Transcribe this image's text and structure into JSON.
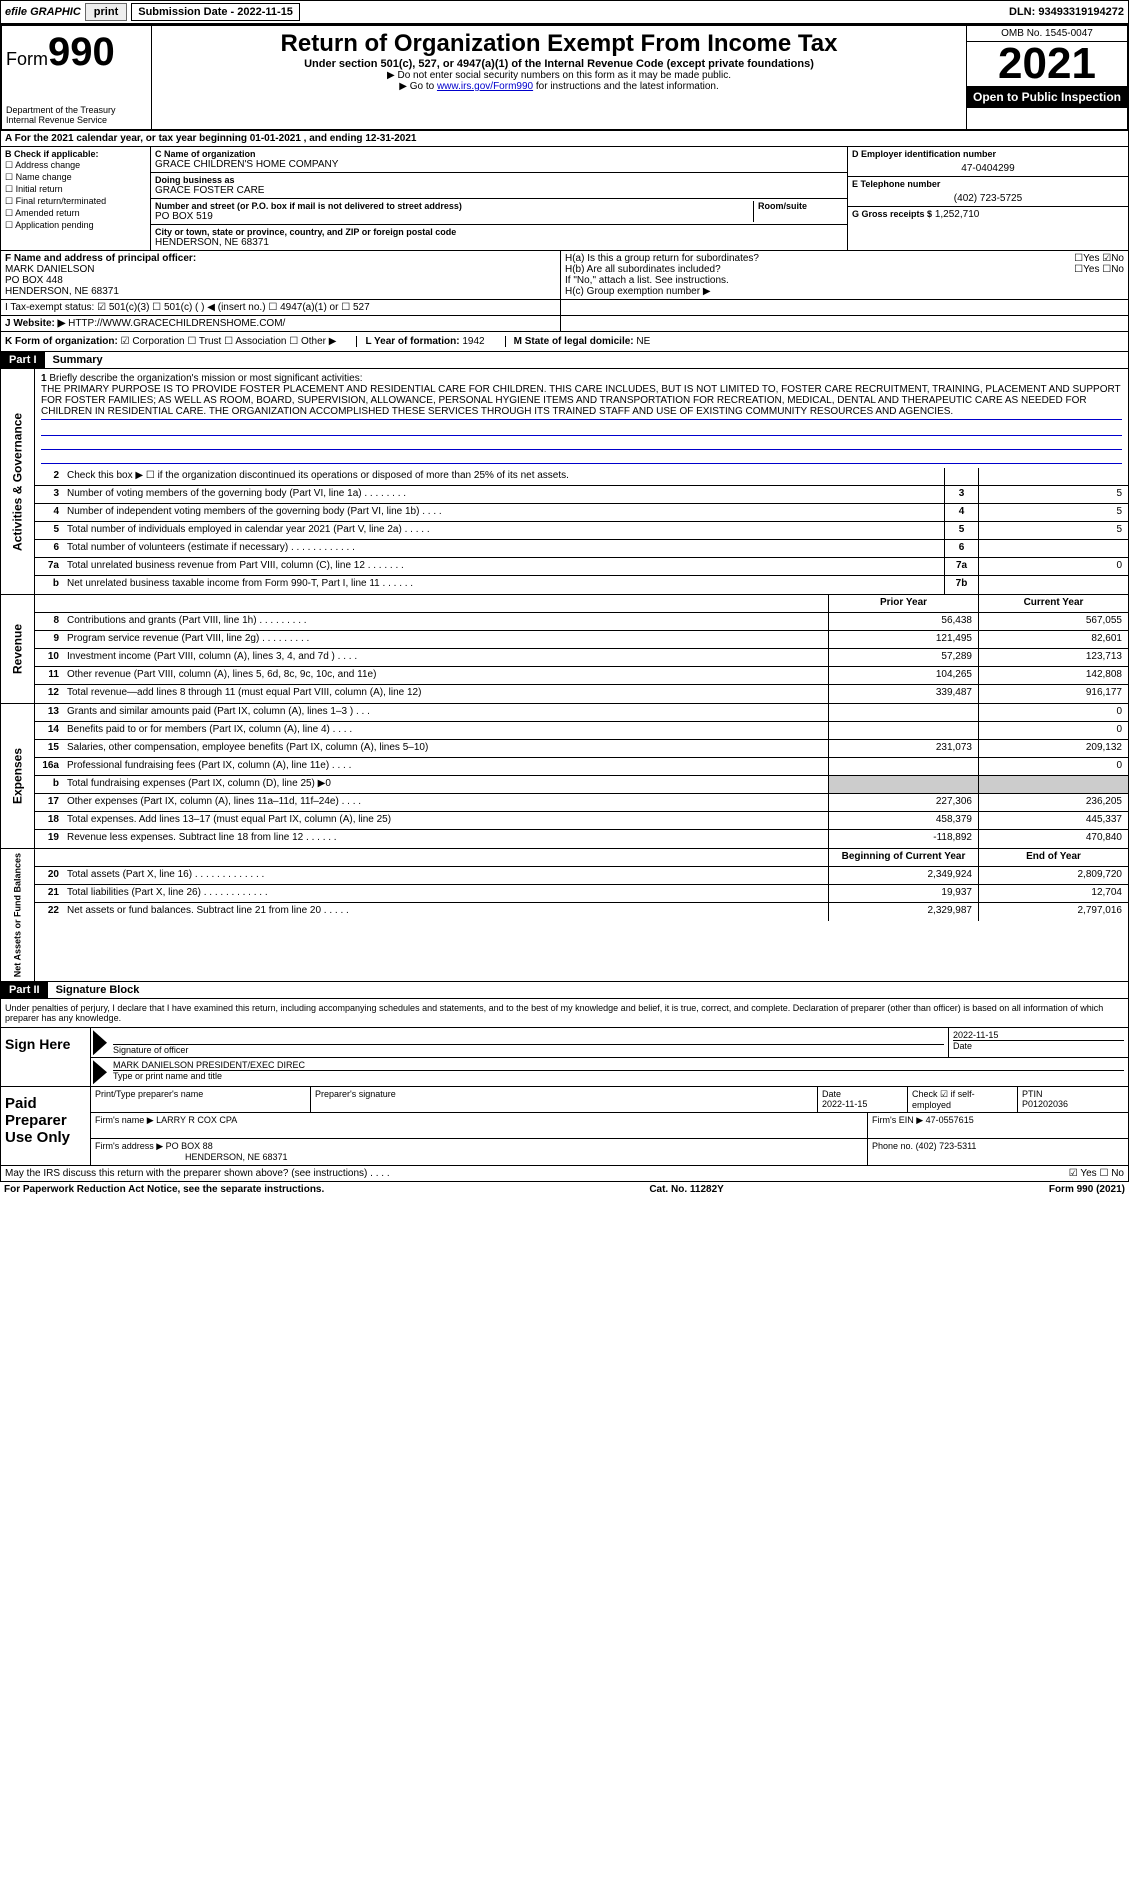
{
  "topbar": {
    "efile": "efile GRAPHIC",
    "print": "print",
    "subdate_lbl": "Submission Date - 2022-11-15",
    "dln": "DLN: 93493319194272"
  },
  "header": {
    "form_prefix": "Form",
    "form_num": "990",
    "dept": "Department of the Treasury",
    "irs": "Internal Revenue Service",
    "title": "Return of Organization Exempt From Income Tax",
    "sub1": "Under section 501(c), 527, or 4947(a)(1) of the Internal Revenue Code (except private foundations)",
    "sub2": "▶ Do not enter social security numbers on this form as it may be made public.",
    "sub3_pre": "▶ Go to ",
    "sub3_link": "www.irs.gov/Form990",
    "sub3_post": " for instructions and the latest information.",
    "omb": "OMB No. 1545-0047",
    "year": "2021",
    "inspection": "Open to Public Inspection"
  },
  "tax_year_line": "A For the 2021 calendar year, or tax year beginning 01-01-2021   , and ending 12-31-2021",
  "colB": {
    "hdr": "B Check if applicable:",
    "items": [
      "Address change",
      "Name change",
      "Initial return",
      "Final return/terminated",
      "Amended return",
      "Application pending"
    ]
  },
  "colC": {
    "name_lbl": "C Name of organization",
    "name": "GRACE CHILDREN'S HOME COMPANY",
    "dba_lbl": "Doing business as",
    "dba": "GRACE FOSTER CARE",
    "addr_lbl": "Number and street (or P.O. box if mail is not delivered to street address)",
    "room_lbl": "Room/suite",
    "addr": "PO BOX 519",
    "city_lbl": "City or town, state or province, country, and ZIP or foreign postal code",
    "city": "HENDERSON, NE  68371"
  },
  "colD": {
    "ein_lbl": "D Employer identification number",
    "ein": "47-0404299",
    "phone_lbl": "E Telephone number",
    "phone": "(402) 723-5725",
    "gross_lbl": "G Gross receipts $",
    "gross": "1,252,710"
  },
  "F": {
    "lbl": "F  Name and address of principal officer:",
    "name": "MARK DANIELSON",
    "addr1": "PO BOX 448",
    "addr2": "HENDERSON, NE  68371"
  },
  "H": {
    "a": "H(a)  Is this a group return for subordinates?",
    "b": "H(b)  Are all subordinates included?",
    "b_note": "If \"No,\" attach a list. See instructions.",
    "c": "H(c)  Group exemption number ▶",
    "yes": "Yes",
    "no": "No"
  },
  "I": {
    "lbl": "I   Tax-exempt status:",
    "opts": [
      "501(c)(3)",
      "501(c) (   ) ◀ (insert no.)",
      "4947(a)(1) or",
      "527"
    ]
  },
  "J": {
    "lbl": "J   Website: ▶",
    "val": "HTTP://WWW.GRACECHILDRENSHOME.COM/"
  },
  "K": {
    "lbl": "K Form of organization:",
    "opts": [
      "Corporation",
      "Trust",
      "Association",
      "Other ▶"
    ],
    "L_lbl": "L Year of formation:",
    "L_val": "1942",
    "M_lbl": "M State of legal domicile:",
    "M_val": "NE"
  },
  "part1": {
    "hdr": "Part I",
    "title": "Summary"
  },
  "mission": {
    "num": "1",
    "lbl": "Briefly describe the organization's mission or most significant activities:",
    "text": "THE PRIMARY PURPOSE IS TO PROVIDE FOSTER PLACEMENT AND RESIDENTIAL CARE FOR CHILDREN. THIS CARE INCLUDES, BUT IS NOT LIMITED TO, FOSTER CARE RECRUITMENT, TRAINING, PLACEMENT AND SUPPORT FOR FOSTER FAMILIES; AS WELL AS ROOM, BOARD, SUPERVISION, ALLOWANCE, PERSONAL HYGIENE ITEMS AND TRANSPORTATION FOR RECREATION, MEDICAL, DENTAL AND THERAPEUTIC CARE AS NEEDED FOR CHILDREN IN RESIDENTIAL CARE. THE ORGANIZATION ACCOMPLISHED THESE SERVICES THROUGH ITS TRAINED STAFF AND USE OF EXISTING COMMUNITY RESOURCES AND AGENCIES."
  },
  "gov_lines": [
    {
      "n": "2",
      "d": "Check this box ▶ ☐ if the organization discontinued its operations or disposed of more than 25% of its net assets.",
      "b": "",
      "p": "",
      "c": ""
    },
    {
      "n": "3",
      "d": "Number of voting members of the governing body (Part VI, line 1a)  .    .    .    .    .    .    .    .",
      "b": "3",
      "p": "",
      "c": "5"
    },
    {
      "n": "4",
      "d": "Number of independent voting members of the governing body (Part VI, line 1b)   .    .    .    .",
      "b": "4",
      "p": "",
      "c": "5"
    },
    {
      "n": "5",
      "d": "Total number of individuals employed in calendar year 2021 (Part V, line 2a)    .    .    .    .    .",
      "b": "5",
      "p": "",
      "c": "5"
    },
    {
      "n": "6",
      "d": "Total number of volunteers (estimate if necessary)   .    .    .    .    .    .    .    .    .    .    .    .",
      "b": "6",
      "p": "",
      "c": ""
    },
    {
      "n": "7a",
      "d": "Total unrelated business revenue from Part VIII, column (C), line 12   .    .    .    .    .    .    .",
      "b": "7a",
      "p": "",
      "c": "0"
    },
    {
      "n": "b",
      "d": "Net unrelated business taxable income from Form 990-T, Part I, line 11   .    .    .    .    .    .",
      "b": "7b",
      "p": "",
      "c": ""
    }
  ],
  "rev_hdr": {
    "prior": "Prior Year",
    "curr": "Current Year"
  },
  "rev_lines": [
    {
      "n": "8",
      "d": "Contributions and grants (Part VIII, line 1h)  .    .    .    .    .    .    .    .    .",
      "p": "56,438",
      "c": "567,055"
    },
    {
      "n": "9",
      "d": "Program service revenue (Part VIII, line 2g)   .    .    .    .    .    .    .    .    .",
      "p": "121,495",
      "c": "82,601"
    },
    {
      "n": "10",
      "d": "Investment income (Part VIII, column (A), lines 3, 4, and 7d )  .    .    .    .",
      "p": "57,289",
      "c": "123,713"
    },
    {
      "n": "11",
      "d": "Other revenue (Part VIII, column (A), lines 5, 6d, 8c, 9c, 10c, and 11e)",
      "p": "104,265",
      "c": "142,808"
    },
    {
      "n": "12",
      "d": "Total revenue—add lines 8 through 11 (must equal Part VIII, column (A), line 12)",
      "p": "339,487",
      "c": "916,177"
    }
  ],
  "exp_lines": [
    {
      "n": "13",
      "d": "Grants and similar amounts paid (Part IX, column (A), lines 1–3 )  .    .    .",
      "p": "",
      "c": "0"
    },
    {
      "n": "14",
      "d": "Benefits paid to or for members (Part IX, column (A), line 4)  .    .    .    .",
      "p": "",
      "c": "0"
    },
    {
      "n": "15",
      "d": "Salaries, other compensation, employee benefits (Part IX, column (A), lines 5–10)",
      "p": "231,073",
      "c": "209,132"
    },
    {
      "n": "16a",
      "d": "Professional fundraising fees (Part IX, column (A), line 11e)   .    .    .    .",
      "p": "",
      "c": "0"
    },
    {
      "n": "b",
      "d": "Total fundraising expenses (Part IX, column (D), line 25) ▶0",
      "p": "shaded",
      "c": "shaded"
    },
    {
      "n": "17",
      "d": "Other expenses (Part IX, column (A), lines 11a–11d, 11f–24e)   .    .    .    .",
      "p": "227,306",
      "c": "236,205"
    },
    {
      "n": "18",
      "d": "Total expenses. Add lines 13–17 (must equal Part IX, column (A), line 25)",
      "p": "458,379",
      "c": "445,337"
    },
    {
      "n": "19",
      "d": "Revenue less expenses. Subtract line 18 from line 12   .    .    .    .    .    .",
      "p": "-118,892",
      "c": "470,840"
    }
  ],
  "net_hdr": {
    "prior": "Beginning of Current Year",
    "curr": "End of Year"
  },
  "net_lines": [
    {
      "n": "20",
      "d": "Total assets (Part X, line 16)  .    .    .    .    .    .    .    .    .    .    .    .    .",
      "p": "2,349,924",
      "c": "2,809,720"
    },
    {
      "n": "21",
      "d": "Total liabilities (Part X, line 26)   .    .    .    .    .    .    .    .    .    .    .    .",
      "p": "19,937",
      "c": "12,704"
    },
    {
      "n": "22",
      "d": "Net assets or fund balances. Subtract line 21 from line 20   .    .    .    .    .",
      "p": "2,329,987",
      "c": "2,797,016"
    }
  ],
  "vtabs": {
    "gov": "Activities & Governance",
    "rev": "Revenue",
    "exp": "Expenses",
    "net": "Net Assets or Fund Balances"
  },
  "part2": {
    "hdr": "Part II",
    "title": "Signature Block",
    "intro": "Under penalties of perjury, I declare that I have examined this return, including accompanying schedules and statements, and to the best of my knowledge and belief, it is true, correct, and complete. Declaration of preparer (other than officer) is based on all information of which preparer has any knowledge."
  },
  "sign": {
    "here": "Sign Here",
    "sig_lbl": "Signature of officer",
    "date_lbl": "Date",
    "date": "2022-11-15",
    "name": "MARK DANIELSON PRESIDENT/EXEC DIREC",
    "name_lbl": "Type or print name and title"
  },
  "paid": {
    "here": "Paid Preparer Use Only",
    "col1": "Print/Type preparer's name",
    "col2": "Preparer's signature",
    "col3": "Date",
    "date": "2022-11-15",
    "col4_lbl": "Check ☑ if self-employed",
    "col5_lbl": "PTIN",
    "ptin": "P01202036",
    "firm_name_lbl": "Firm's name    ▶",
    "firm_name": "LARRY R COX CPA",
    "firm_ein_lbl": "Firm's EIN ▶",
    "firm_ein": "47-0557615",
    "firm_addr_lbl": "Firm's address ▶",
    "firm_addr": "PO BOX 88",
    "firm_city": "HENDERSON, NE  68371",
    "phone_lbl": "Phone no.",
    "phone": "(402) 723-5311"
  },
  "footer": {
    "discuss": "May the IRS discuss this return with the preparer shown above? (see instructions)   .    .    .    .",
    "yes": "Yes",
    "no": "No",
    "pra": "For Paperwork Reduction Act Notice, see the separate instructions.",
    "cat": "Cat. No. 11282Y",
    "form": "Form 990 (2021)"
  }
}
